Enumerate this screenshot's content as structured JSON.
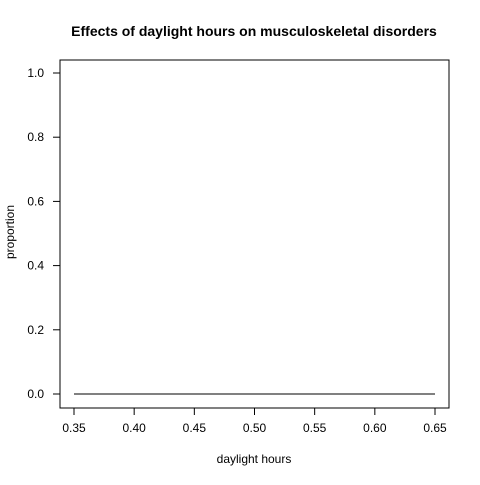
{
  "chart_data": {
    "type": "line",
    "title": "Effects of daylight hours on musculoskeletal disorders",
    "xlabel": "daylight hours",
    "ylabel": "proportion",
    "xlim": [
      0.35,
      0.65
    ],
    "ylim": [
      0.0,
      1.0
    ],
    "x_ticks": [
      "0.35",
      "0.40",
      "0.45",
      "0.50",
      "0.55",
      "0.60",
      "0.65"
    ],
    "y_ticks": [
      "0.0",
      "0.2",
      "0.4",
      "0.6",
      "0.8",
      "1.0"
    ],
    "grid": false,
    "series": [
      {
        "color": "#000000",
        "x": [
          0.35,
          0.65
        ],
        "y": [
          0.0,
          0.0
        ]
      }
    ]
  }
}
